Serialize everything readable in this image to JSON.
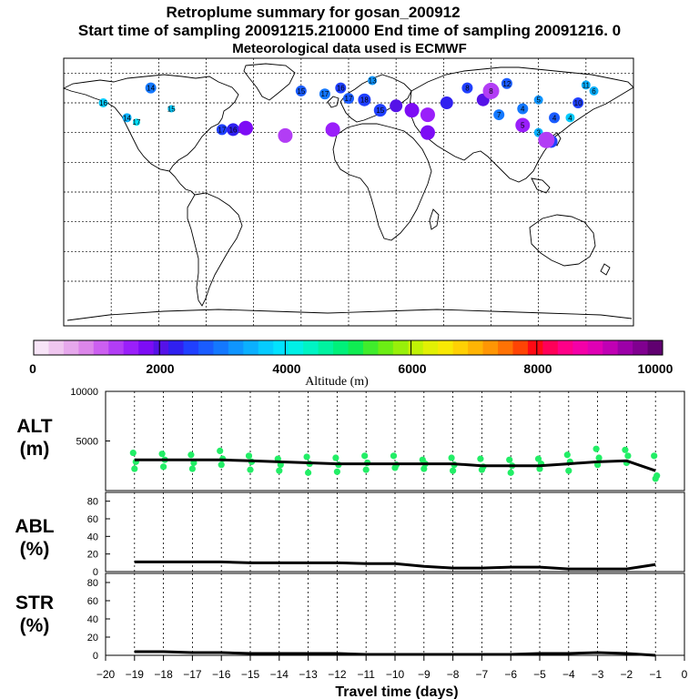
{
  "titles": {
    "line1": "Retroplume summary for gosan_200912",
    "line2": "Start time of sampling 20091215.210000     End time of sampling 20091216.     0",
    "line3": "Meteorological data used is ECMWF"
  },
  "colorbar": {
    "label": "Altitude (m)",
    "tick_labels": [
      "0",
      "2000",
      "4000",
      "6000",
      "8000",
      "10000"
    ],
    "range": [
      0,
      10000
    ],
    "colors": [
      "#f7e4f7",
      "#efc6ef",
      "#e6a8ec",
      "#dc86ea",
      "#cc5ff0",
      "#b23df5",
      "#9a1ffa",
      "#7d0cf5",
      "#5512e8",
      "#3020f0",
      "#2040ff",
      "#1a5cff",
      "#1478ff",
      "#0f95ff",
      "#0bb0ff",
      "#06cbff",
      "#02e2ff",
      "#00f0e6",
      "#00f4c4",
      "#00f2a0",
      "#00f07a",
      "#0fec52",
      "#40ec2c",
      "#6cee14",
      "#98f00a",
      "#c0f206",
      "#e2f004",
      "#f8e804",
      "#ffd004",
      "#ffb404",
      "#ff9604",
      "#ff7204",
      "#ff4404",
      "#ff0a14",
      "#ff0058",
      "#ff0088",
      "#f400a8",
      "#e000b4",
      "#c000b4",
      "#9c00a8",
      "#800090",
      "#600070"
    ]
  },
  "map": {
    "markers": [
      {
        "lon": -125,
        "lat": 70,
        "alt": 3000,
        "label": "14"
      },
      {
        "lon": -155,
        "lat": 60,
        "alt": 3600,
        "label": "16"
      },
      {
        "lon": -112,
        "lat": 56,
        "alt": 3800,
        "label": "15"
      },
      {
        "lon": -140,
        "lat": 50,
        "alt": 3500,
        "label": "14"
      },
      {
        "lon": -134,
        "lat": 47,
        "alt": 4000,
        "label": "17"
      },
      {
        "lon": -80,
        "lat": 42,
        "alt": 2600,
        "label": "17"
      },
      {
        "lon": -73,
        "lat": 42,
        "alt": 2200,
        "label": "16"
      },
      {
        "lon": -65,
        "lat": 43,
        "alt": 1800,
        "label": ""
      },
      {
        "lon": -40,
        "lat": 38,
        "alt": 1400,
        "label": ""
      },
      {
        "lon": -30,
        "lat": 68,
        "alt": 2800,
        "label": "15"
      },
      {
        "lon": -15,
        "lat": 66,
        "alt": 3000,
        "label": "17"
      },
      {
        "lon": -5,
        "lat": 70,
        "alt": 2600,
        "label": "16"
      },
      {
        "lon": 0,
        "lat": 63,
        "alt": 2800,
        "label": "17"
      },
      {
        "lon": 10,
        "lat": 62,
        "alt": 2400,
        "label": "18"
      },
      {
        "lon": 15,
        "lat": 75,
        "alt": 3200,
        "label": "13"
      },
      {
        "lon": 20,
        "lat": 55,
        "alt": 2500,
        "label": "15"
      },
      {
        "lon": 30,
        "lat": 58,
        "alt": 2000,
        "label": ""
      },
      {
        "lon": 40,
        "lat": 55,
        "alt": 1800,
        "label": ""
      },
      {
        "lon": 50,
        "lat": 52,
        "alt": 1600,
        "label": ""
      },
      {
        "lon": 62,
        "lat": 60,
        "alt": 2300,
        "label": ""
      },
      {
        "lon": 75,
        "lat": 70,
        "alt": 2600,
        "label": "8"
      },
      {
        "lon": 85,
        "lat": 62,
        "alt": 2000,
        "label": ""
      },
      {
        "lon": 90,
        "lat": 68,
        "alt": 1300,
        "label": "8"
      },
      {
        "lon": 110,
        "lat": 56,
        "alt": 3000,
        "label": "4"
      },
      {
        "lon": 120,
        "lat": 62,
        "alt": 3200,
        "label": "5"
      },
      {
        "lon": 130,
        "lat": 50,
        "alt": 2800,
        "label": "4"
      },
      {
        "lon": 140,
        "lat": 50,
        "alt": 3600,
        "label": "4"
      },
      {
        "lon": 145,
        "lat": 60,
        "alt": 2600,
        "label": "10"
      },
      {
        "lon": 155,
        "lat": 68,
        "alt": 3500,
        "label": "6"
      },
      {
        "lon": 120,
        "lat": 40,
        "alt": 3400,
        "label": "3"
      },
      {
        "lon": 128,
        "lat": 34,
        "alt": 2400,
        "label": "1"
      },
      {
        "lon": 110,
        "lat": 45,
        "alt": 1600,
        "label": "5"
      },
      {
        "lon": 95,
        "lat": 52,
        "alt": 3000,
        "label": "7"
      },
      {
        "lon": 50,
        "lat": 40,
        "alt": 1800,
        "label": ""
      },
      {
        "lon": -10,
        "lat": 42,
        "alt": 1600,
        "label": ""
      },
      {
        "lon": 150,
        "lat": 72,
        "alt": 3400,
        "label": "11"
      },
      {
        "lon": 100,
        "lat": 73,
        "alt": 2800,
        "label": "12"
      },
      {
        "lon": 125,
        "lat": 35,
        "alt": 1200,
        "label": ""
      }
    ]
  },
  "chart_data": [
    {
      "type": "scatter",
      "panel": "altitude",
      "ylabel": "ALT\n(m)",
      "ylabel_lines": [
        "ALT",
        "(m)"
      ],
      "ylim": [
        0,
        10000
      ],
      "yticks": [
        0,
        5000,
        10000
      ],
      "ytick_labels": [
        "5000",
        "10000"
      ],
      "x": [
        -19,
        -18,
        -17,
        -16,
        -15,
        -14,
        -13,
        -12,
        -11,
        -10,
        -9,
        -8,
        -7,
        -6,
        -5,
        -4,
        -3,
        -2,
        -1
      ],
      "mean_line": [
        3100,
        3100,
        3100,
        3100,
        3000,
        2900,
        2800,
        2700,
        2700,
        2700,
        2700,
        2700,
        2500,
        2500,
        2500,
        2700,
        2900,
        3000,
        2000
      ],
      "point_offsets": [
        [
          3800,
          2200,
          2900
        ],
        [
          3700,
          2400,
          3100
        ],
        [
          3600,
          2200,
          2800
        ],
        [
          4000,
          2600,
          3200
        ],
        [
          3500,
          2100,
          2900
        ],
        [
          3200,
          2000,
          2600
        ],
        [
          3400,
          1800,
          2700
        ],
        [
          3300,
          1900,
          2600
        ],
        [
          3500,
          2100,
          2800
        ],
        [
          3500,
          2300,
          2600
        ],
        [
          3100,
          2200,
          2700
        ],
        [
          3300,
          2000,
          2600
        ],
        [
          3200,
          2100,
          2400
        ],
        [
          3100,
          1800,
          2500
        ],
        [
          3200,
          2200,
          2700
        ],
        [
          3600,
          2000,
          2900
        ],
        [
          4200,
          2600,
          3300
        ],
        [
          4100,
          2800,
          3500
        ],
        [
          3500,
          1200,
          1500
        ]
      ],
      "point_color": "#22ee66"
    },
    {
      "type": "line",
      "panel": "abl",
      "ylabel_lines": [
        "ABL",
        "(%)"
      ],
      "ylim": [
        0,
        90
      ],
      "ytick_labels": [
        "0",
        "20",
        "40",
        "60",
        "80"
      ],
      "x": [
        -19,
        -18,
        -17,
        -16,
        -15,
        -14,
        -13,
        -12,
        -11,
        -10,
        -9,
        -8,
        -7,
        -6,
        -5,
        -4,
        -3,
        -2,
        -1
      ],
      "values": [
        11,
        11,
        11,
        11,
        10,
        10,
        10,
        10,
        9,
        9,
        6,
        4,
        4,
        5,
        5,
        3,
        3,
        3,
        8
      ]
    },
    {
      "type": "line",
      "panel": "str",
      "ylabel_lines": [
        "STR",
        "(%)"
      ],
      "ylim": [
        0,
        90
      ],
      "ytick_labels": [
        "0",
        "20",
        "40",
        "60",
        "80"
      ],
      "x": [
        -19,
        -18,
        -17,
        -16,
        -15,
        -14,
        -13,
        -12,
        -11,
        -10,
        -9,
        -8,
        -7,
        -6,
        -5,
        -4,
        -3,
        -2,
        -1
      ],
      "values": [
        4,
        4,
        3,
        3,
        2,
        2,
        2,
        2,
        1,
        1,
        1,
        1,
        1,
        1,
        2,
        2,
        3,
        2,
        0
      ]
    }
  ],
  "xaxis": {
    "label": "Travel time (days)",
    "tick_labels": [
      "−20",
      "−19",
      "−18",
      "−17",
      "−16",
      "−15",
      "−14",
      "−13",
      "−12",
      "−11",
      "−10",
      "−9",
      "−8",
      "−7",
      "−6",
      "−5",
      "−4",
      "−3",
      "−2",
      "−1",
      "0"
    ],
    "range": [
      -20,
      0
    ]
  }
}
